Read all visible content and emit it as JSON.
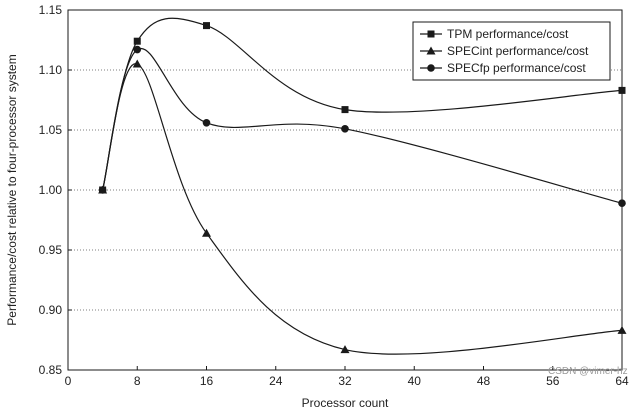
{
  "chart_data": {
    "type": "line",
    "xlabel": "Processor count",
    "ylabel": "Performance/cost relative to four-processor system",
    "xlim": [
      0,
      64
    ],
    "ylim": [
      0.85,
      1.15
    ],
    "xticks": [
      0,
      8,
      16,
      24,
      32,
      40,
      48,
      56,
      64
    ],
    "yticks": [
      0.85,
      0.9,
      0.95,
      1.0,
      1.05,
      1.1,
      1.15
    ],
    "ytick_labels": [
      "0.85",
      "0.90",
      "0.95",
      "1.00",
      "1.05",
      "1.10",
      "1.15"
    ],
    "grid": "horizontal-dotted",
    "legend_position": "top-right",
    "series": [
      {
        "name": "TPM performance/cost",
        "marker": "square",
        "x": [
          4,
          8,
          16,
          32,
          64
        ],
        "y": [
          1.0,
          1.124,
          1.137,
          1.067,
          1.083
        ]
      },
      {
        "name": "SPECint performance/cost",
        "marker": "triangle",
        "x": [
          4,
          8,
          16,
          32,
          64
        ],
        "y": [
          1.0,
          1.105,
          0.964,
          0.867,
          0.883
        ]
      },
      {
        "name": "SPECfp performance/cost",
        "marker": "circle",
        "x": [
          4,
          8,
          16,
          32,
          64
        ],
        "y": [
          1.0,
          1.117,
          1.056,
          1.051,
          0.989
        ]
      }
    ],
    "colors": {
      "line": "#1a1a1a",
      "grid": "#555555",
      "watermark": "#9a9a9a"
    }
  },
  "watermark": "CSDN @vimer-hz"
}
